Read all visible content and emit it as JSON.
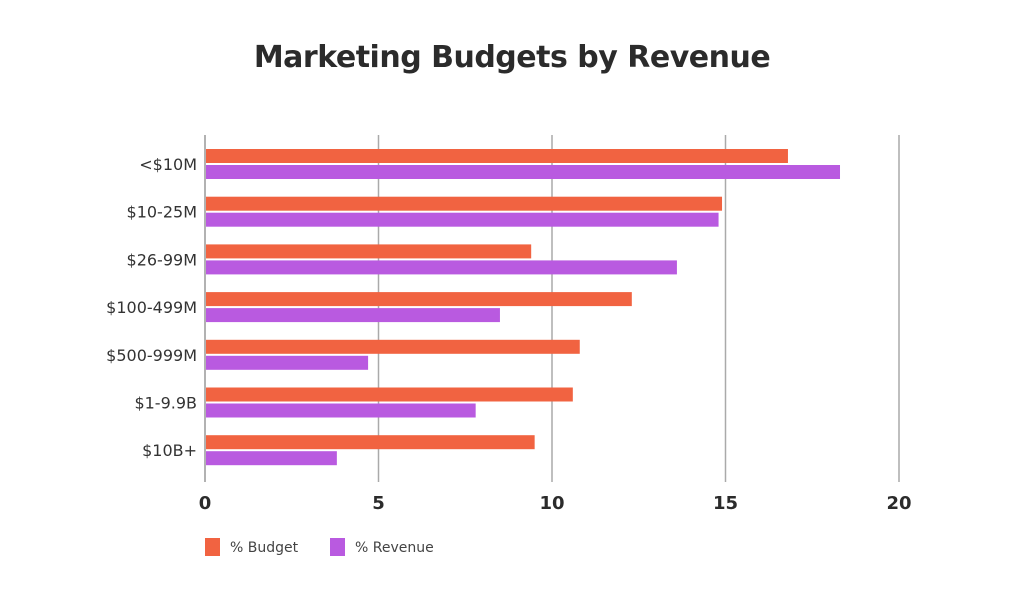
{
  "chart_data": {
    "type": "bar",
    "orientation": "horizontal",
    "title": "Marketing Budgets by Revenue",
    "categories": [
      "<$10M",
      "$10-25M",
      "$26-99M",
      "$100-499M",
      "$500-999M",
      "$1-9.9B",
      "$10B+"
    ],
    "series": [
      {
        "name": "% Budget",
        "color": "#f16341",
        "values": [
          16.8,
          14.9,
          9.4,
          12.3,
          10.8,
          10.6,
          9.5
        ]
      },
      {
        "name": "% Revenue",
        "color": "#b95ae0",
        "values": [
          18.3,
          14.8,
          13.6,
          8.5,
          4.7,
          7.8,
          3.8
        ]
      }
    ],
    "xlim": [
      0,
      20
    ],
    "xticks": [
      "0",
      "5",
      "10",
      "15",
      "20"
    ],
    "xlabel": "",
    "ylabel": "",
    "grid": "vertical",
    "legend": "bottom-left"
  }
}
